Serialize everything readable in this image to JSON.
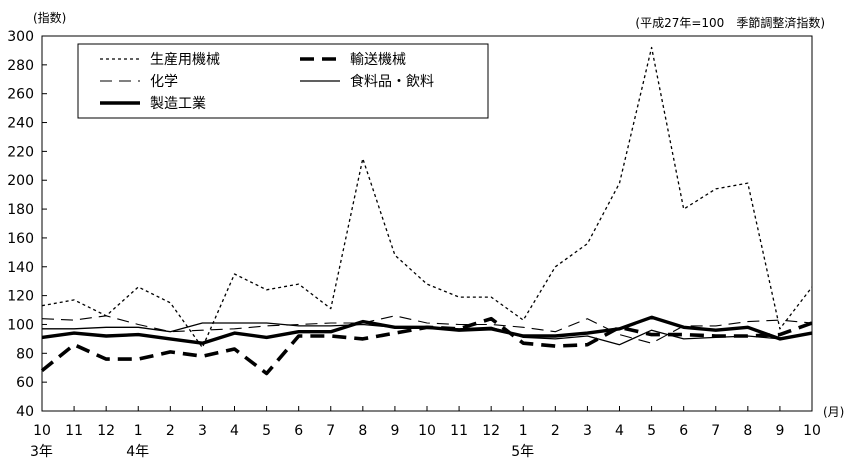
{
  "chart_data": {
    "type": "line",
    "ylabel": "(指数)",
    "note": "(平成27年=100　季節調整済指数)",
    "x_unit": "(月)",
    "ylim": [
      40,
      300
    ],
    "ystep": 20,
    "grid": false,
    "legend_position": "top-left",
    "categories": [
      "10",
      "11",
      "12",
      "1",
      "2",
      "3",
      "4",
      "5",
      "6",
      "7",
      "8",
      "9",
      "10",
      "11",
      "12",
      "1",
      "2",
      "3",
      "4",
      "5",
      "6",
      "7",
      "8",
      "9",
      "10"
    ],
    "year_labels": [
      {
        "index": 0,
        "label": "3年"
      },
      {
        "index": 3,
        "label": "4年"
      },
      {
        "index": 15,
        "label": "5年"
      }
    ],
    "series": [
      {
        "name": "生産用機械",
        "style": "dotted",
        "values": [
          113,
          117,
          106,
          126,
          115,
          84,
          135,
          124,
          128,
          111,
          215,
          148,
          128,
          119,
          119,
          103,
          140,
          156,
          198,
          292,
          180,
          194,
          198,
          97,
          126
        ]
      },
      {
        "name": "輸送機械",
        "style": "bold-dashed",
        "values": [
          68,
          86,
          76,
          76,
          81,
          78,
          83,
          66,
          92,
          92,
          90,
          94,
          98,
          97,
          104,
          87,
          85,
          86,
          98,
          93,
          93,
          92,
          92,
          93,
          101
        ]
      },
      {
        "name": "化学",
        "style": "dashed",
        "values": [
          104,
          103,
          106,
          100,
          95,
          96,
          97,
          99,
          100,
          101,
          101,
          106,
          101,
          100,
          100,
          98,
          95,
          104,
          93,
          87,
          99,
          99,
          102,
          103,
          101
        ]
      },
      {
        "name": "食料品・飲料",
        "style": "thin",
        "values": [
          97,
          97,
          98,
          98,
          95,
          101,
          101,
          101,
          99,
          99,
          100,
          98,
          98,
          97,
          98,
          91,
          90,
          92,
          86,
          96,
          90,
          91,
          92,
          90,
          94
        ]
      },
      {
        "name": "製造工業",
        "style": "bold",
        "values": [
          91,
          94,
          92,
          93,
          90,
          87,
          94,
          91,
          95,
          95,
          102,
          98,
          98,
          96,
          97,
          92,
          92,
          94,
          97,
          105,
          98,
          96,
          98,
          90,
          94
        ]
      }
    ]
  }
}
